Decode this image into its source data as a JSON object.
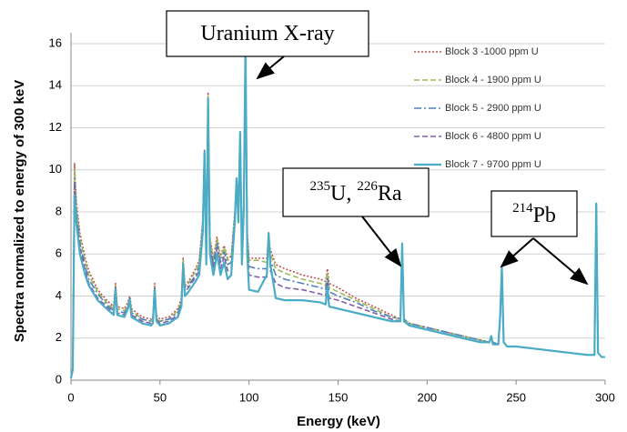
{
  "chart_data": {
    "type": "line",
    "x_label": "Energy (keV)",
    "y_label": "Spectra normalized to energy of 300 keV",
    "xlim": [
      0,
      300
    ],
    "xticks": [
      0,
      50,
      100,
      150,
      200,
      250,
      300
    ],
    "ylim": [
      0,
      16
    ],
    "yticks": [
      0,
      2,
      4,
      6,
      8,
      10,
      12,
      14,
      16
    ],
    "grid": true,
    "legend": "upper right",
    "annotations": [
      {
        "parts": [
          "Uranium X-ray"
        ]
      },
      {
        "parts": [
          "235",
          "U, ",
          "226",
          "Ra"
        ]
      },
      {
        "parts": [
          "214",
          "Pb"
        ]
      }
    ],
    "x": [
      0,
      1,
      2,
      3,
      5,
      8,
      10,
      15,
      20,
      24,
      25,
      26,
      30,
      32,
      33,
      34,
      40,
      45,
      46,
      47,
      48,
      50,
      55,
      60,
      62,
      63,
      64,
      66,
      70,
      72,
      74,
      75,
      76,
      77,
      78,
      80,
      82,
      84,
      86,
      88,
      90,
      92,
      93,
      94,
      95,
      96,
      97,
      98,
      99,
      100,
      105,
      110,
      111,
      112,
      115,
      120,
      130,
      140,
      143,
      144,
      145,
      150,
      160,
      170,
      180,
      185,
      186,
      187,
      190,
      200,
      210,
      220,
      230,
      235,
      236,
      237,
      240,
      241,
      242,
      243,
      245,
      250,
      260,
      270,
      280,
      290,
      294,
      295,
      296,
      298,
      300
    ],
    "series": [
      {
        "name": "Block 3 -1000 ppm U",
        "color": "#c0504d",
        "dash": "2,2",
        "values": [
          0.1,
          0.6,
          10.3,
          8.5,
          7,
          5.8,
          5.2,
          4.3,
          3.8,
          3.5,
          4.6,
          3.5,
          3.4,
          3.7,
          4.0,
          3.4,
          3.0,
          2.9,
          3.0,
          4.6,
          3.1,
          2.9,
          3.0,
          3.4,
          3.9,
          5.8,
          4.5,
          4.7,
          5.3,
          5.7,
          7.6,
          11.0,
          6.2,
          13.7,
          6.8,
          5.8,
          6.8,
          5.9,
          6.4,
          5.8,
          5.9,
          8.0,
          9.5,
          8.2,
          11.5,
          6.6,
          8.3,
          14.5,
          7.0,
          5.8,
          5.8,
          5.8,
          6.8,
          6.2,
          5.5,
          5.3,
          5.0,
          4.8,
          4.7,
          5.3,
          4.6,
          4.4,
          3.9,
          3.5,
          3.1,
          2.9,
          6.3,
          2.9,
          2.7,
          2.5,
          2.3,
          2.1,
          1.9,
          1.8,
          2.0,
          1.8,
          1.7,
          2.8,
          5.2,
          1.8,
          1.6,
          1.6,
          1.5,
          1.4,
          1.3,
          1.2,
          1.2,
          8.0,
          1.3,
          1.1,
          1.1
        ]
      },
      {
        "name": "Block 4 - 1900 ppm U",
        "color": "#9bbb59",
        "dash": "6,3",
        "values": [
          0.1,
          0.6,
          10.0,
          8.3,
          6.8,
          5.6,
          5.0,
          4.2,
          3.7,
          3.4,
          4.5,
          3.4,
          3.3,
          3.6,
          3.9,
          3.3,
          2.9,
          2.8,
          2.9,
          4.5,
          3.0,
          2.8,
          2.9,
          3.3,
          3.8,
          5.7,
          4.4,
          4.6,
          5.2,
          5.6,
          7.5,
          11.0,
          6.1,
          13.5,
          6.7,
          5.7,
          6.7,
          5.8,
          6.3,
          5.7,
          5.8,
          7.9,
          9.5,
          8.1,
          11.6,
          6.5,
          8.2,
          14.7,
          6.9,
          5.7,
          5.7,
          5.6,
          6.8,
          6.0,
          5.3,
          5.1,
          4.8,
          4.6,
          4.5,
          5.1,
          4.4,
          4.2,
          3.8,
          3.4,
          3.0,
          2.9,
          6.4,
          2.9,
          2.7,
          2.5,
          2.3,
          2.1,
          1.9,
          1.8,
          2.0,
          1.8,
          1.7,
          2.9,
          5.3,
          1.8,
          1.6,
          1.6,
          1.5,
          1.4,
          1.3,
          1.2,
          1.2,
          8.2,
          1.3,
          1.1,
          1.1
        ]
      },
      {
        "name": "Block 5 - 2900 ppm U",
        "color": "#4f81bd",
        "dash": "8,3,2,3",
        "values": [
          0.1,
          0.6,
          9.6,
          8.0,
          6.5,
          5.4,
          4.8,
          4.1,
          3.6,
          3.3,
          4.4,
          3.3,
          3.2,
          3.5,
          3.9,
          3.2,
          2.9,
          2.8,
          2.9,
          4.4,
          2.9,
          2.8,
          2.9,
          3.2,
          3.7,
          5.6,
          4.3,
          4.5,
          5.0,
          5.4,
          7.3,
          10.9,
          5.9,
          13.0,
          6.5,
          5.5,
          6.5,
          5.6,
          6.1,
          5.5,
          5.6,
          7.8,
          9.6,
          8.0,
          11.7,
          6.3,
          8.1,
          15.0,
          6.7,
          5.4,
          5.3,
          5.3,
          6.9,
          5.7,
          5.0,
          4.8,
          4.6,
          4.4,
          4.3,
          4.9,
          4.2,
          4.0,
          3.7,
          3.3,
          3.0,
          2.9,
          6.4,
          2.9,
          2.7,
          2.5,
          2.3,
          2.1,
          1.9,
          1.8,
          2.0,
          1.8,
          1.7,
          2.9,
          5.3,
          1.8,
          1.6,
          1.6,
          1.5,
          1.4,
          1.3,
          1.2,
          1.2,
          8.3,
          1.3,
          1.1,
          1.1
        ]
      },
      {
        "name": "Block 6 - 4800 ppm U",
        "color": "#7f5fa9",
        "dash": "6,3",
        "values": [
          0.1,
          0.5,
          9.4,
          7.8,
          6.3,
          5.2,
          4.6,
          3.9,
          3.5,
          3.2,
          4.4,
          3.2,
          3.1,
          3.5,
          3.8,
          3.1,
          2.8,
          2.7,
          2.8,
          4.4,
          2.9,
          2.7,
          2.8,
          3.1,
          3.6,
          5.5,
          4.2,
          4.4,
          4.9,
          5.2,
          7.2,
          10.8,
          5.7,
          13.2,
          6.3,
          5.3,
          6.3,
          5.3,
          5.9,
          5.2,
          5.3,
          7.6,
          9.6,
          7.8,
          11.7,
          5.9,
          8.0,
          15.5,
          6.4,
          5.0,
          4.9,
          4.9,
          6.9,
          5.2,
          4.6,
          4.4,
          4.3,
          4.1,
          4.0,
          4.6,
          3.9,
          3.8,
          3.5,
          3.2,
          2.9,
          2.8,
          6.5,
          2.8,
          2.6,
          2.4,
          2.2,
          2.0,
          1.8,
          1.8,
          2.1,
          1.7,
          1.7,
          3.0,
          5.4,
          1.8,
          1.6,
          1.6,
          1.5,
          1.4,
          1.3,
          1.2,
          1.2,
          8.4,
          1.3,
          1.1,
          1.1
        ]
      },
      {
        "name": "Block 7 - 9700 ppm U",
        "color": "#4bacc6",
        "dash": null,
        "values": [
          0.1,
          0.5,
          8.8,
          7.5,
          6,
          5,
          4.5,
          3.8,
          3.4,
          3.1,
          4.3,
          3.1,
          3.0,
          3.4,
          3.8,
          3.0,
          2.7,
          2.6,
          2.7,
          4.3,
          2.8,
          2.6,
          2.7,
          3.0,
          3.5,
          5.5,
          4.0,
          4.2,
          4.7,
          5.0,
          7.0,
          10.8,
          5.5,
          13.4,
          6.0,
          5.0,
          6.0,
          5.0,
          5.6,
          4.8,
          5.0,
          7.5,
          9.6,
          7.5,
          11.8,
          5.5,
          8.0,
          16.0,
          6.0,
          4.3,
          4.2,
          5.0,
          7.0,
          5.5,
          3.9,
          3.8,
          3.8,
          3.7,
          3.6,
          4.4,
          3.5,
          3.4,
          3.2,
          3.0,
          2.8,
          2.8,
          6.5,
          2.8,
          2.6,
          2.4,
          2.2,
          2.0,
          1.8,
          1.8,
          2.1,
          1.7,
          1.7,
          3.0,
          5.4,
          1.8,
          1.6,
          1.6,
          1.5,
          1.4,
          1.3,
          1.2,
          1.2,
          8.4,
          1.3,
          1.1,
          1.1
        ]
      }
    ]
  }
}
